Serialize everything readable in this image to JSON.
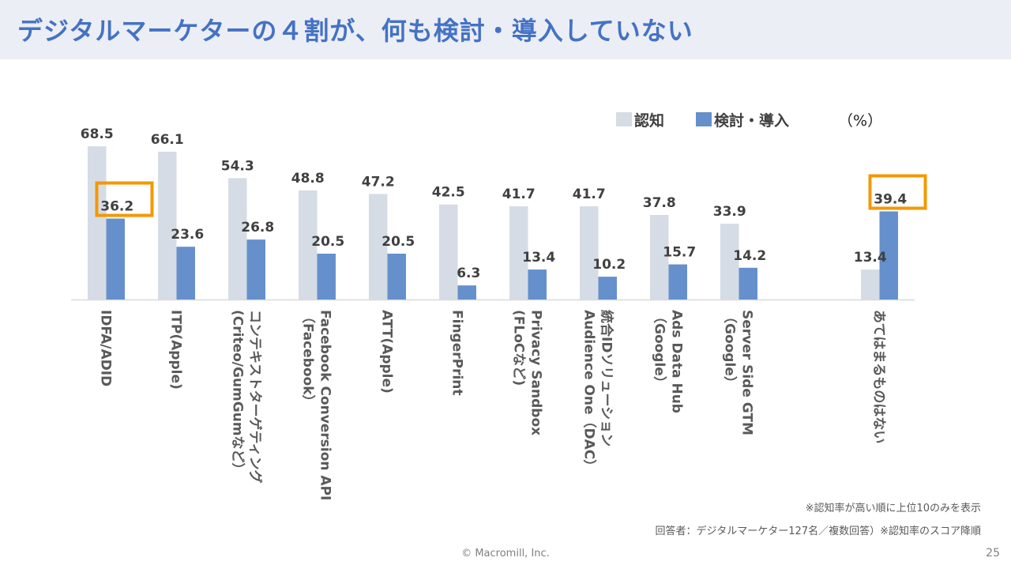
{
  "header": {
    "title": "デジタルマーケターの４割が、何も検討・導入していない"
  },
  "legend": {
    "items": [
      {
        "label": "認知",
        "color": "#d6dce5"
      },
      {
        "label": "検討・導入",
        "color": "#6590cc"
      }
    ],
    "unit": "（%）"
  },
  "chart_data": {
    "type": "bar",
    "title": "デジタルマーケターの４割が、何も検討・導入していない",
    "xlabel": "",
    "ylabel": "",
    "unit": "%",
    "ylim": [
      0,
      70
    ],
    "grid": false,
    "legend_position": "top-right",
    "categories": [
      [
        "IDFA/ADID"
      ],
      [
        "ITP(Apple)"
      ],
      [
        "コンテキストターゲティング",
        "(Criteo/GumGumなど）"
      ],
      [
        "Facebook Conversion API",
        "（Facebook）"
      ],
      [
        "ATT(Apple)"
      ],
      [
        "FingerPrint"
      ],
      [
        "Privacy Sandbox",
        "(FLoCなど)"
      ],
      [
        "統合IDソリューション",
        "Audience One（DAC）"
      ],
      [
        "Ads Data Hub",
        "（Google）"
      ],
      [
        "Server Side GTM",
        "（Google）"
      ],
      [
        "あてはまるものはない"
      ]
    ],
    "series": [
      {
        "name": "認知",
        "color": "#d6dce5",
        "values": [
          68.5,
          66.1,
          54.3,
          48.8,
          47.2,
          42.5,
          41.7,
          41.7,
          37.8,
          33.9,
          13.4
        ]
      },
      {
        "name": "検討・導入",
        "color": "#6590cc",
        "values": [
          36.2,
          23.6,
          26.8,
          20.5,
          20.5,
          6.3,
          13.4,
          10.2,
          15.7,
          14.2,
          39.4
        ]
      }
    ],
    "highlights": [
      {
        "category_index": 0,
        "series": "検討・導入",
        "value": 36.2,
        "color": "#f39800"
      },
      {
        "category_index": 10,
        "series": "検討・導入",
        "value": 39.4,
        "color": "#f39800"
      }
    ]
  },
  "notes": {
    "top10": "※認知率が高い順に上位10のみを表示",
    "respondents": "回答者：デジタルマーケター127名／複数回答）※認知率のスコア降順"
  },
  "footer": {
    "copyright": "© Macromill, Inc.",
    "page_number": "25"
  }
}
